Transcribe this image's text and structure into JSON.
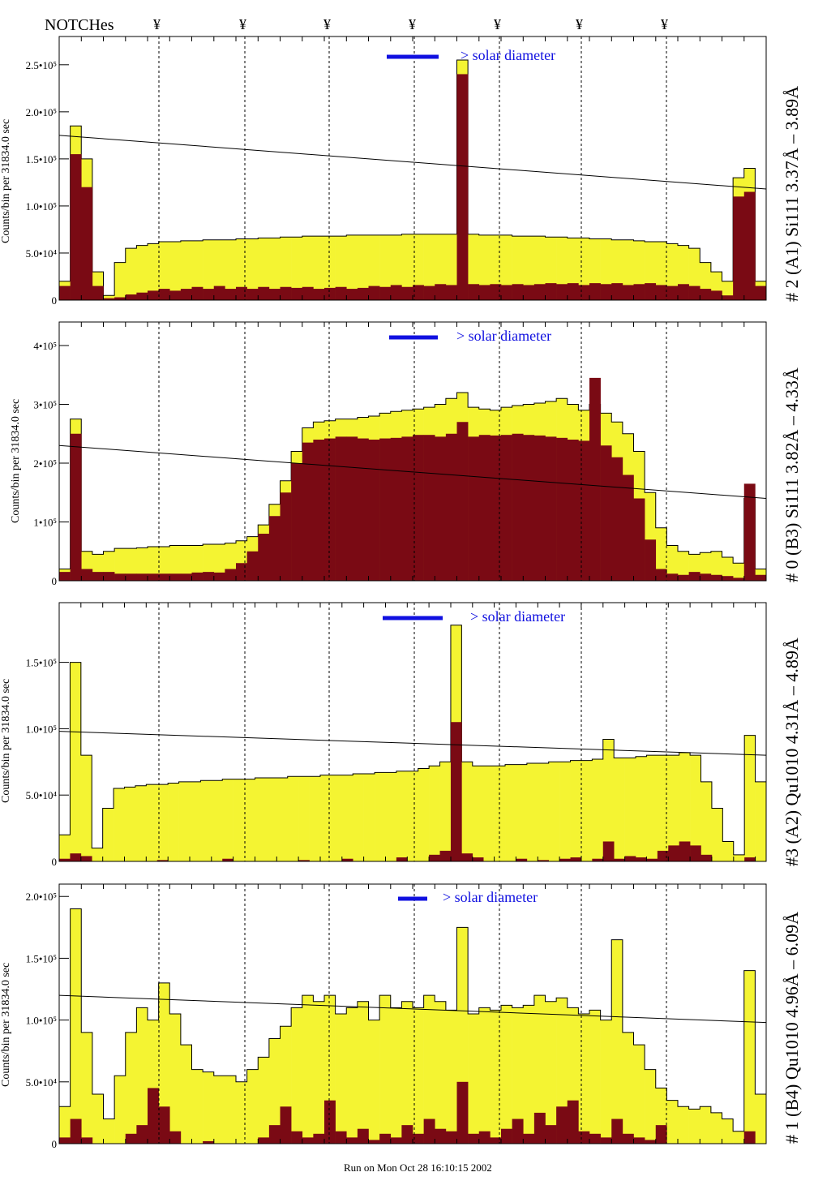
{
  "header": {
    "notch_label": "NOTCHes",
    "notch_symbol": "¥"
  },
  "footer": {
    "run_text": "Run on Mon Oct 28 16:10:15 2002"
  },
  "colors": {
    "total_fill": "#f4f432",
    "sub_fill": "#7a0a14",
    "annotation": "#1010e0"
  },
  "chart_data": [
    {
      "type": "area",
      "panel_label": "# 2 (A1) Si111  3.37Å – 3.89Å",
      "ylabel": "Counts/bin per  31834.0 sec",
      "ylim": [
        0,
        280000
      ],
      "yticks": [
        0,
        50000,
        100000,
        150000,
        200000,
        250000
      ],
      "ytick_labels": [
        "0",
        "5.0•10⁴",
        "1.0•10⁵",
        "1.5•10⁵",
        "2.0•10⁵",
        "2.5•10⁵"
      ],
      "annotation": "> solar diameter",
      "line": [
        175000,
        118000
      ],
      "total": [
        20000,
        185000,
        150000,
        30000,
        5000,
        40000,
        55000,
        58000,
        60000,
        62000,
        62000,
        63000,
        63000,
        64000,
        64000,
        64000,
        65000,
        65000,
        66000,
        66000,
        67000,
        67000,
        68000,
        68000,
        68000,
        68000,
        69000,
        69000,
        69000,
        69000,
        69000,
        70000,
        70000,
        70000,
        70000,
        70000,
        255000,
        70000,
        69000,
        69000,
        69000,
        68000,
        68000,
        68000,
        67000,
        67000,
        66000,
        66000,
        65000,
        65000,
        64000,
        64000,
        63000,
        62000,
        62000,
        60000,
        58000,
        55000,
        40000,
        30000,
        20000,
        130000,
        140000,
        20000
      ],
      "sub": [
        15000,
        155000,
        120000,
        15000,
        2000,
        3000,
        6000,
        8000,
        10000,
        12000,
        10000,
        12000,
        14000,
        12000,
        15000,
        12000,
        14000,
        12000,
        14000,
        12000,
        14000,
        13000,
        14000,
        12000,
        13000,
        14000,
        12000,
        13000,
        15000,
        14000,
        16000,
        14000,
        16000,
        15000,
        17000,
        16000,
        240000,
        17000,
        16000,
        17000,
        16000,
        17000,
        16000,
        17000,
        18000,
        17000,
        18000,
        16000,
        18000,
        17000,
        18000,
        16000,
        17000,
        18000,
        16000,
        15000,
        17000,
        15000,
        12000,
        10000,
        5000,
        110000,
        115000,
        15000
      ]
    },
    {
      "type": "area",
      "panel_label": "# 0 (B3) Si111  3.82Å – 4.33Å",
      "ylabel": "Counts/bin per  31834.0 sec",
      "ylim": [
        0,
        440000
      ],
      "yticks": [
        0,
        100000,
        200000,
        300000,
        400000
      ],
      "ytick_labels": [
        "0",
        "1•10⁵",
        "2•10⁵",
        "3•10⁵",
        "4•10⁵"
      ],
      "annotation": "> solar diameter",
      "line": [
        230000,
        140000
      ],
      "total": [
        20000,
        275000,
        50000,
        45000,
        50000,
        55000,
        55000,
        56000,
        58000,
        58000,
        60000,
        60000,
        60000,
        62000,
        62000,
        64000,
        68000,
        75000,
        95000,
        130000,
        170000,
        220000,
        260000,
        270000,
        272000,
        275000,
        275000,
        278000,
        280000,
        285000,
        288000,
        290000,
        292000,
        295000,
        300000,
        310000,
        320000,
        295000,
        292000,
        290000,
        295000,
        298000,
        300000,
        302000,
        305000,
        310000,
        300000,
        290000,
        300000,
        285000,
        270000,
        250000,
        220000,
        150000,
        90000,
        60000,
        50000,
        45000,
        48000,
        50000,
        40000,
        30000,
        140000,
        20000
      ],
      "sub": [
        15000,
        250000,
        20000,
        15000,
        15000,
        12000,
        12000,
        12000,
        12000,
        12000,
        12000,
        12000,
        14000,
        15000,
        14000,
        20000,
        30000,
        50000,
        80000,
        110000,
        150000,
        200000,
        235000,
        240000,
        242000,
        245000,
        245000,
        242000,
        240000,
        242000,
        243000,
        245000,
        248000,
        248000,
        245000,
        250000,
        270000,
        245000,
        248000,
        247000,
        248000,
        250000,
        248000,
        247000,
        245000,
        243000,
        240000,
        238000,
        345000,
        230000,
        210000,
        180000,
        140000,
        70000,
        20000,
        12000,
        10000,
        15000,
        12000,
        10000,
        8000,
        5000,
        165000,
        10000
      ]
    },
    {
      "type": "area",
      "panel_label": "#3 (A2) Qu1010  4.31Å – 4.89Å",
      "ylabel": "Counts/bin per  31834.0 sec",
      "ylim": [
        0,
        195000
      ],
      "yticks": [
        0,
        50000,
        100000,
        150000
      ],
      "ytick_labels": [
        "0",
        "5.0•10⁴",
        "1.0•10⁵",
        "1.5•10⁵"
      ],
      "annotation": "> solar diameter",
      "line": [
        98000,
        80000
      ],
      "total": [
        20000,
        150000,
        80000,
        10000,
        40000,
        55000,
        56000,
        57000,
        58000,
        58000,
        59000,
        60000,
        60000,
        61000,
        61000,
        62000,
        62000,
        62000,
        63000,
        63000,
        63000,
        64000,
        64000,
        64000,
        65000,
        65000,
        65000,
        66000,
        66000,
        67000,
        67000,
        68000,
        68000,
        70000,
        72000,
        75000,
        178000,
        75000,
        72000,
        72000,
        72000,
        73000,
        73000,
        74000,
        74000,
        75000,
        75000,
        76000,
        76000,
        77000,
        92000,
        78000,
        78000,
        79000,
        80000,
        80000,
        80000,
        82000,
        80000,
        60000,
        40000,
        15000,
        5000,
        95000,
        60000
      ],
      "sub": [
        2000,
        6000,
        4000,
        0,
        0,
        0,
        0,
        0,
        0,
        1000,
        0,
        0,
        0,
        0,
        0,
        2000,
        0,
        0,
        0,
        0,
        0,
        0,
        1000,
        0,
        0,
        0,
        2000,
        0,
        0,
        0,
        0,
        3000,
        0,
        0,
        5000,
        8000,
        105000,
        6000,
        3000,
        0,
        0,
        0,
        2000,
        0,
        1000,
        0,
        2000,
        3000,
        0,
        2000,
        15000,
        2000,
        4000,
        3000,
        2000,
        8000,
        12000,
        15000,
        12000,
        5000,
        0,
        0,
        0,
        3000,
        0
      ]
    },
    {
      "type": "area",
      "panel_label": "# 1 (B4) Qu1010 4.96Å – 6.09Å",
      "ylabel": "Counts/bin per  31834.0 sec",
      "ylim": [
        0,
        210000
      ],
      "yticks": [
        0,
        50000,
        100000,
        150000,
        200000
      ],
      "ytick_labels": [
        "0",
        "5.0•10⁴",
        "1.0•10⁵",
        "1.5•10⁵",
        "2.0•10⁵"
      ],
      "annotation": "> solar diameter",
      "line": [
        120000,
        98000
      ],
      "total": [
        30000,
        190000,
        90000,
        40000,
        20000,
        55000,
        90000,
        110000,
        100000,
        130000,
        105000,
        80000,
        60000,
        58000,
        55000,
        55000,
        50000,
        60000,
        70000,
        85000,
        95000,
        110000,
        120000,
        115000,
        120000,
        105000,
        110000,
        115000,
        100000,
        120000,
        110000,
        115000,
        110000,
        120000,
        115000,
        108000,
        175000,
        105000,
        110000,
        108000,
        112000,
        110000,
        112000,
        120000,
        115000,
        118000,
        110000,
        105000,
        108000,
        100000,
        165000,
        90000,
        80000,
        60000,
        45000,
        35000,
        30000,
        28000,
        30000,
        25000,
        20000,
        10000,
        140000,
        40000
      ],
      "sub": [
        5000,
        20000,
        5000,
        0,
        0,
        0,
        8000,
        15000,
        45000,
        30000,
        10000,
        0,
        0,
        2000,
        0,
        0,
        0,
        0,
        5000,
        15000,
        30000,
        10000,
        5000,
        8000,
        35000,
        10000,
        5000,
        12000,
        3000,
        8000,
        5000,
        15000,
        8000,
        20000,
        12000,
        10000,
        50000,
        8000,
        10000,
        5000,
        12000,
        20000,
        8000,
        25000,
        15000,
        30000,
        35000,
        10000,
        8000,
        5000,
        20000,
        8000,
        5000,
        3000,
        15000,
        0,
        0,
        0,
        0,
        0,
        0,
        0,
        10000,
        0
      ]
    }
  ]
}
